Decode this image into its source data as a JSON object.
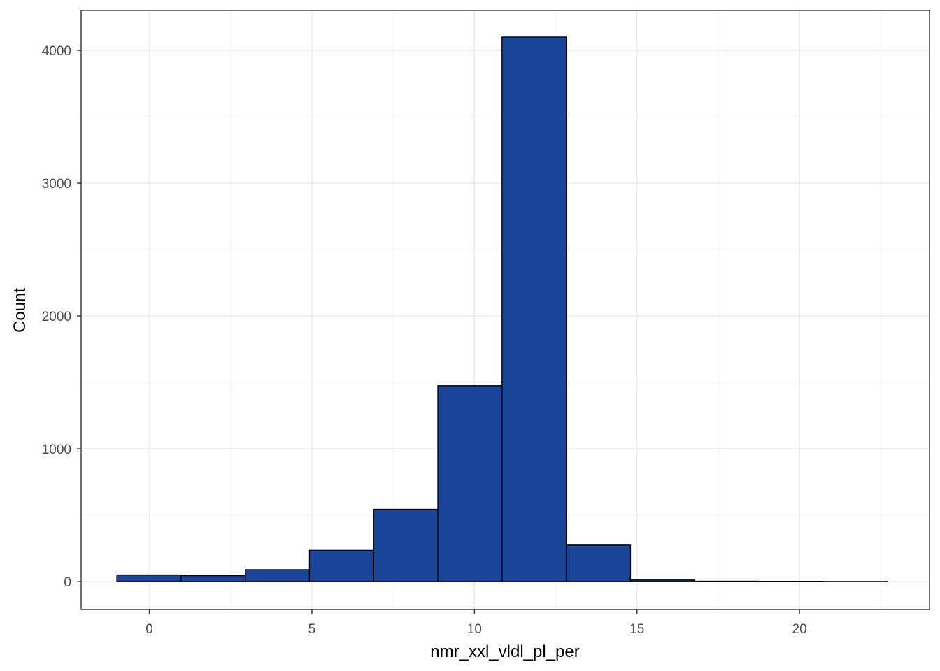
{
  "chart_data": {
    "type": "bar",
    "subtype": "histogram",
    "title": "",
    "xlabel": "nmr_xxl_vldl_pl_per",
    "ylabel": "Count",
    "xlim": [
      -2.1,
      24.0
    ],
    "ylim": [
      -210,
      4300
    ],
    "x_ticks": [
      0,
      5,
      10,
      15,
      20
    ],
    "x_tick_labels": [
      "0",
      "5",
      "10",
      "15",
      "20"
    ],
    "y_ticks": [
      0,
      1000,
      2000,
      3000,
      4000
    ],
    "y_tick_labels": [
      "0",
      "1000",
      "2000",
      "3000",
      "4000"
    ],
    "x_minor_ticks": [
      2.5,
      7.5,
      12.5,
      17.5,
      22.5
    ],
    "y_minor_ticks": [
      500,
      1500,
      2500,
      3500
    ],
    "bin_width": 1.975,
    "bins": [
      {
        "x0": -1.0,
        "x1": 0.975,
        "count": 50
      },
      {
        "x0": 0.975,
        "x1": 2.95,
        "count": 45
      },
      {
        "x0": 2.95,
        "x1": 4.925,
        "count": 90
      },
      {
        "x0": 4.925,
        "x1": 6.9,
        "count": 235
      },
      {
        "x0": 6.9,
        "x1": 8.875,
        "count": 545
      },
      {
        "x0": 8.875,
        "x1": 10.85,
        "count": 1475
      },
      {
        "x0": 10.85,
        "x1": 12.825,
        "count": 4100
      },
      {
        "x0": 12.825,
        "x1": 14.8,
        "count": 275
      },
      {
        "x0": 14.8,
        "x1": 16.775,
        "count": 12
      },
      {
        "x0": 16.775,
        "x1": 18.75,
        "count": 3
      },
      {
        "x0": 18.75,
        "x1": 20.725,
        "count": 2
      },
      {
        "x0": 20.725,
        "x1": 22.7,
        "count": 1
      }
    ],
    "grid": true,
    "legend": "none",
    "colors": {
      "bar_fill": "#1a4599",
      "bar_stroke": "#000000",
      "grid_major": "#ebebeb",
      "grid_minor": "#f3f3f3",
      "panel_border": "#333333",
      "tick_text": "#4d4d4d"
    }
  }
}
